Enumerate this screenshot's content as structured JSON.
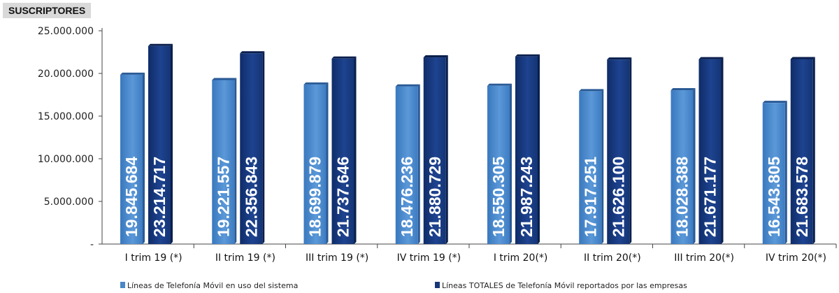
{
  "chart_data": {
    "type": "bar",
    "title": "SUSCRIPTORES",
    "categories": [
      "I trim 19 (*)",
      "II trim 19 (*)",
      "III trim 19 (*)",
      "IV trim 19 (*)",
      "I trim 20(*)",
      "II trim 20(*)",
      "III trim 20(*)",
      "IV trim 20(*)"
    ],
    "series": [
      {
        "name": "Líneas de Telefonía Móvil en uso del sistema",
        "values": [
          19845684,
          19221557,
          18699879,
          18476236,
          18550305,
          17917251,
          18028388,
          16543805
        ],
        "labels": [
          "19.845.684",
          "19.221.557",
          "18.699.879",
          "18.476.236",
          "18.550.305",
          "17.917.251",
          "18.028.388",
          "16.543.805"
        ],
        "color": "#4a86c8"
      },
      {
        "name": "Líneas TOTALES de Telefonía Móvil reportados por las empresas",
        "values": [
          23214717,
          22356843,
          21737646,
          21880729,
          21987243,
          21626100,
          21671177,
          21683578
        ],
        "labels": [
          "23.214.717",
          "22.356.843",
          "21.737.646",
          "21.880.729",
          "21.987.243",
          "21.626.100",
          "21.671.177",
          "21.683.578"
        ],
        "color": "#17377a"
      }
    ],
    "yticks": [
      {
        "value": 0,
        "label": "-"
      },
      {
        "value": 5000000,
        "label": "5.000.000"
      },
      {
        "value": 10000000,
        "label": "10.000.000"
      },
      {
        "value": 15000000,
        "label": "15.000.000"
      },
      {
        "value": 20000000,
        "label": "20.000.000"
      },
      {
        "value": 25000000,
        "label": "25.000.000"
      }
    ],
    "ylim": [
      0,
      25000000
    ],
    "grid": false,
    "legend": "bottom"
  }
}
